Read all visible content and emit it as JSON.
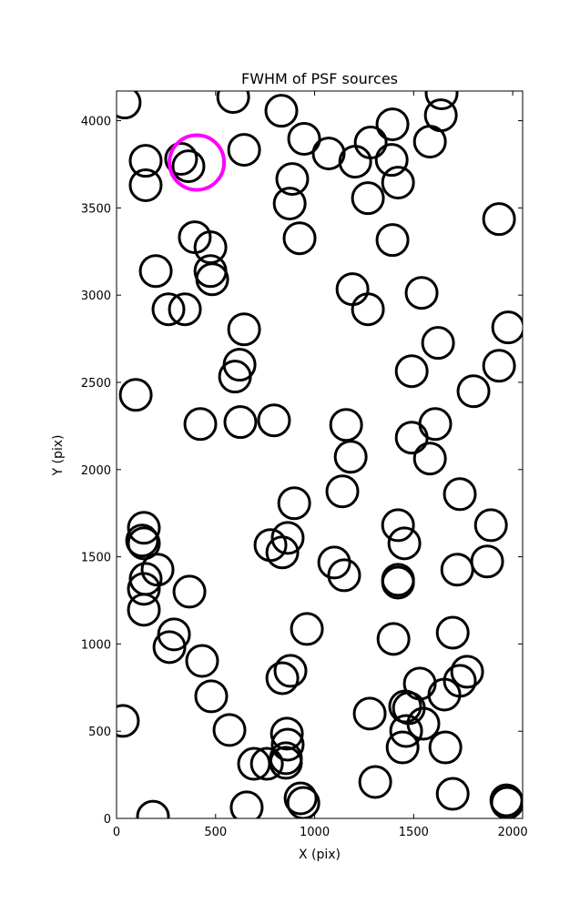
{
  "chart_data": {
    "type": "scatter",
    "title": "FWHM of PSF sources",
    "x_label": "X (pix)",
    "y_label": "Y (pix)",
    "xlim": [
      0,
      2050
    ],
    "ylim": [
      0,
      4170
    ],
    "xticks": [
      0,
      500,
      1000,
      1500,
      2000
    ],
    "yticks": [
      0,
      500,
      1000,
      1500,
      2000,
      2500,
      3000,
      3500,
      4000
    ],
    "series": [
      {
        "color": "#000000",
        "x": [
          41,
          589,
          832,
          1641,
          1637,
          1393,
          947,
          1071,
          1205,
          1283,
          1389,
          1582,
          1421,
          1269,
          887,
          874,
          644,
          147,
          326,
          363,
          147,
          1931,
          924,
          1393,
          395,
          474,
          474,
          483,
          198,
          1191,
          1540,
          262,
          345,
          1269,
          644,
          1977,
          1623,
          621,
          598,
          1931,
          1490,
          1802,
          97,
          423,
          625,
          795,
          1159,
          1609,
          1182,
          1490,
          1582,
          1140,
          1733,
          897,
          1890,
          138,
          1421,
          1453,
          129,
          138,
          864,
          777,
          837,
          1099,
          1149,
          207,
          1720,
          1871,
          1421,
          1421,
          147,
          138,
          368,
          138,
          290,
          961,
          1697,
          1398,
          267,
          432,
          878,
          837,
          1770,
          1531,
          1733,
          1655,
          478,
          1457,
          1476,
          1278,
          1549,
          32,
          570,
          860,
          864,
          1462,
          1444,
          1660,
          694,
          759,
          855,
          855,
          1306,
          1697,
          657,
          929,
          943,
          184,
          1968,
          1972
        ],
        "values": [
          4104,
          4136,
          4057,
          4157,
          4031,
          3979,
          3896,
          3812,
          3765,
          3875,
          3775,
          3880,
          3645,
          3556,
          3666,
          3525,
          3833,
          3770,
          3781,
          3739,
          3630,
          3436,
          3326,
          3316,
          3332,
          3274,
          3138,
          3091,
          3138,
          3034,
          3013,
          2919,
          2919,
          2919,
          2804,
          2815,
          2726,
          2601,
          2533,
          2595,
          2564,
          2449,
          2428,
          2261,
          2272,
          2282,
          2256,
          2261,
          2073,
          2183,
          2063,
          1875,
          1859,
          1807,
          1681,
          1666,
          1681,
          1577,
          1593,
          1577,
          1608,
          1567,
          1525,
          1467,
          1394,
          1426,
          1426,
          1473,
          1368,
          1352,
          1373,
          1316,
          1300,
          1196,
          1055,
          1086,
          1065,
          1029,
          982,
          903,
          846,
          804,
          841,
          773,
          789,
          710,
          700,
          642,
          632,
          601,
          543,
          559,
          507,
          486,
          423,
          501,
          407,
          407,
          313,
          313,
          345,
          319,
          209,
          141,
          63,
          115,
          89,
          10,
          104,
          89
        ]
      },
      {
        "color": "#ff00ff",
        "x": [
          405
        ],
        "values": [
          3760
        ]
      }
    ]
  }
}
